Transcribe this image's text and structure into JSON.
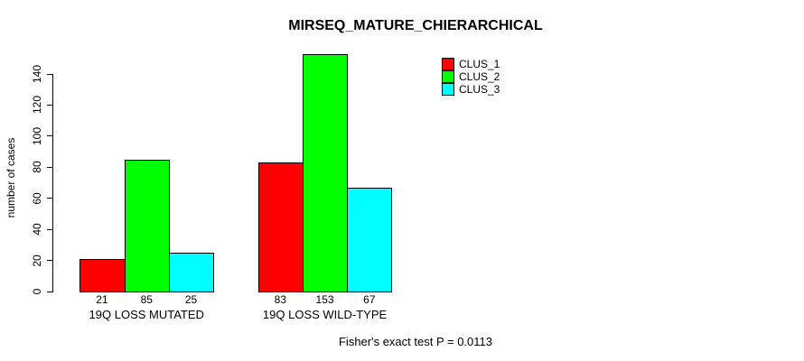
{
  "chart_data": {
    "type": "bar",
    "title": "MIRSEQ_MATURE_CHIERARCHICAL",
    "ylabel": "number of cases",
    "xlabel": "",
    "ylim": [
      0,
      140
    ],
    "yticks": [
      0,
      20,
      40,
      60,
      80,
      100,
      120,
      140
    ],
    "categories": [
      "19Q LOSS MUTATED",
      "19Q LOSS WILD-TYPE"
    ],
    "series": [
      {
        "name": "CLUS_1",
        "color": "#ff0000",
        "values": [
          21,
          83
        ]
      },
      {
        "name": "CLUS_2",
        "color": "#00ff00",
        "values": [
          85,
          153
        ]
      },
      {
        "name": "CLUS_3",
        "color": "#00ffff",
        "values": [
          25,
          67
        ]
      }
    ],
    "legend_position": "top-right",
    "grid": false,
    "annotation": "Fisher's exact test P = 0.0113",
    "colors": {
      "background": "#ffffff",
      "text": "#000000",
      "axis": "#000000",
      "bar_border": "#000000"
    }
  }
}
